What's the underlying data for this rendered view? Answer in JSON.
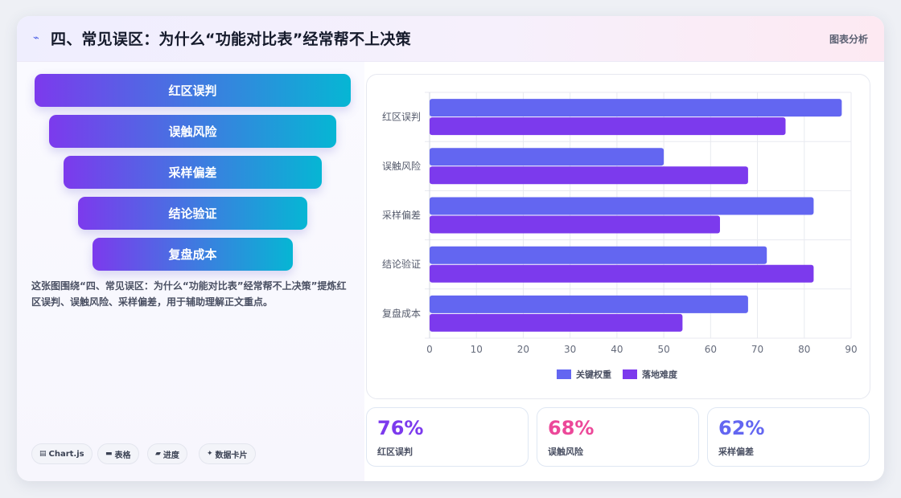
{
  "header": {
    "title": "四、常见误区：为什么“功能对比表”经常帮不上决策",
    "tag": "图表分析",
    "icon": "spark-icon"
  },
  "funnel": {
    "items": [
      "红区误判",
      "误触风险",
      "采样偏差",
      "结论验证",
      "复盘成本"
    ],
    "colors": [
      "#7c3aed",
      "#06b6d4"
    ]
  },
  "description": "这张图围绕“四、常见误区：为什么“功能对比表”经常帮不上决策”提炼红区误判、误触风险、采样偏差，用于辅助理解正文重点。",
  "chips": [
    {
      "icon": "chart-icon",
      "glyph": "▤",
      "label": "Chart.js"
    },
    {
      "icon": "table-icon",
      "glyph": "▬",
      "label": "表格"
    },
    {
      "icon": "progress-icon",
      "glyph": "▰",
      "label": "进度"
    },
    {
      "icon": "sparkle-icon",
      "glyph": "✦",
      "label": "数据卡片"
    }
  ],
  "chart_data": {
    "type": "bar",
    "orientation": "horizontal",
    "categories": [
      "红区误判",
      "误触风险",
      "采样偏差",
      "结论验证",
      "复盘成本"
    ],
    "series": [
      {
        "name": "关键权重",
        "values": [
          88,
          50,
          82,
          72,
          68
        ],
        "color": "#6366f1"
      },
      {
        "name": "落地难度",
        "values": [
          76,
          68,
          62,
          82,
          54
        ],
        "color": "#7c3aed"
      }
    ],
    "xlim": [
      0,
      90
    ],
    "xticks": [
      0,
      10,
      20,
      30,
      40,
      50,
      60,
      70,
      80,
      90
    ],
    "grid": true,
    "legend": "bottom"
  },
  "stats": [
    {
      "value": "76%",
      "label": "红区误判",
      "color": "#7c3aed"
    },
    {
      "value": "68%",
      "label": "误触风险",
      "color": "#ec4899"
    },
    {
      "value": "62%",
      "label": "采样偏差",
      "color": "#6366f1"
    }
  ]
}
